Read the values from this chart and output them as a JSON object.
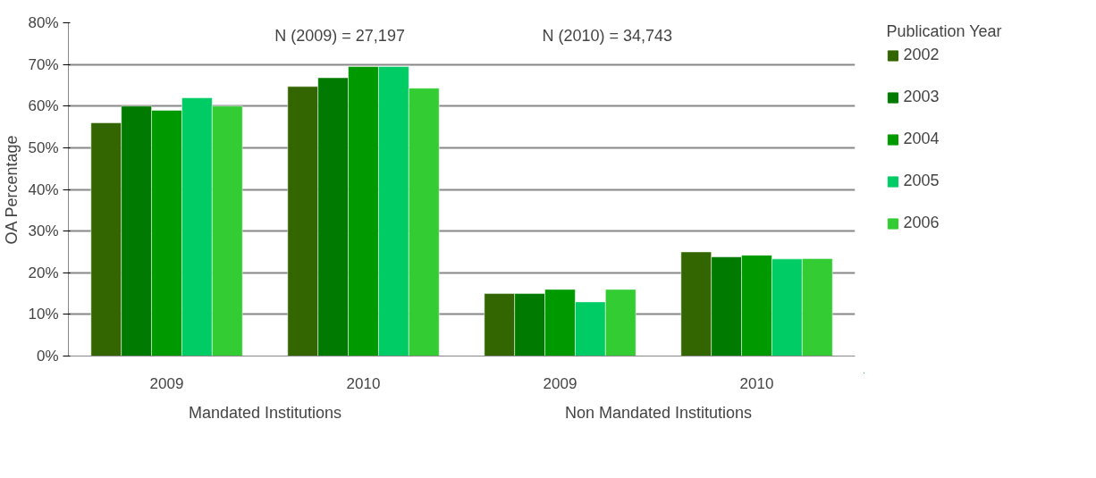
{
  "chart_data": {
    "type": "bar",
    "ylabel": "OA Percentage",
    "legend_title": "Publication Year",
    "categories": [
      "2009",
      "2010",
      "2009",
      "2010"
    ],
    "series": [
      {
        "name": "2002",
        "color": "#336600",
        "values": [
          56,
          64.7,
          15,
          25
        ]
      },
      {
        "name": "2003",
        "color": "#007a00",
        "values": [
          60,
          66.8,
          15,
          23.8
        ]
      },
      {
        "name": "2004",
        "color": "#009900",
        "values": [
          59,
          69.5,
          16,
          24.2
        ]
      },
      {
        "name": "2005",
        "color": "#00cc66",
        "values": [
          62,
          69.5,
          13,
          23.3
        ]
      },
      {
        "name": "2006",
        "color": "#33cc33",
        "values": [
          60,
          64.3,
          16,
          23.4
        ]
      }
    ],
    "ylim": [
      0,
      80
    ],
    "yticks": [
      {
        "value": 0,
        "label": "0%"
      },
      {
        "value": 10,
        "label": "10%"
      },
      {
        "value": 20,
        "label": "20%"
      },
      {
        "value": 30,
        "label": "30%"
      },
      {
        "value": 40,
        "label": "40%"
      },
      {
        "value": 50,
        "label": "50%"
      },
      {
        "value": 60,
        "label": "60%"
      },
      {
        "value": 70,
        "label": "70%"
      },
      {
        "value": 80,
        "label": "80%"
      }
    ],
    "grid": "y",
    "legend": "right",
    "annotations": [
      "N (2009) = 27,197",
      "N (2010) = 34,743",
      "Mandated Institutions",
      "Non Mandated Institutions"
    ]
  }
}
